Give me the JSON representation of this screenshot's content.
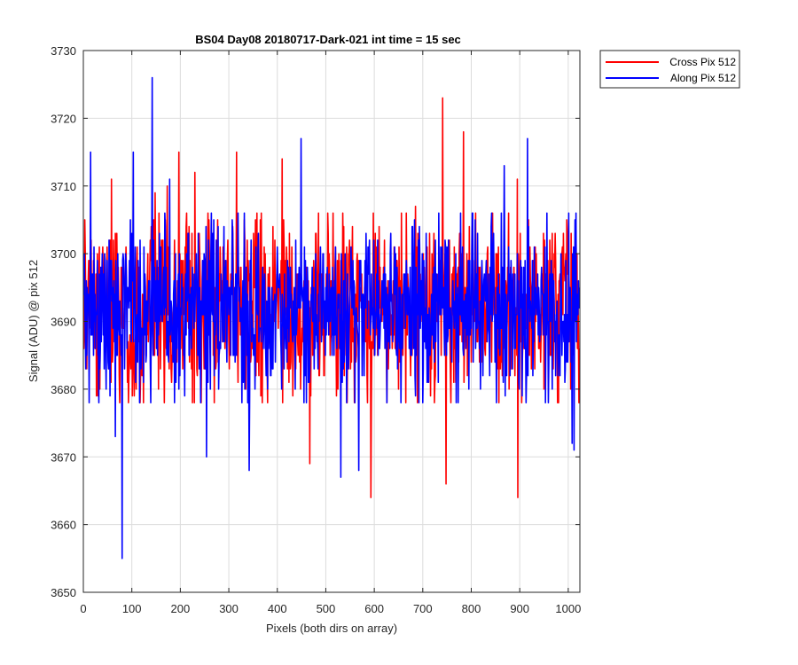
{
  "chart_data": {
    "type": "line",
    "title": "BS04 Day08 20180717-Dark-021 int time = 15 sec",
    "xlabel": "Pixels (both dirs on array)",
    "ylabel": "Signal (ADU) @ pix 512",
    "xlim": [
      0,
      1024
    ],
    "ylim": [
      3650,
      3730
    ],
    "xticks": [
      0,
      100,
      200,
      300,
      400,
      500,
      600,
      700,
      800,
      900,
      1000
    ],
    "yticks": [
      3650,
      3660,
      3670,
      3680,
      3690,
      3700,
      3710,
      3720,
      3730
    ],
    "grid": true,
    "legend_position": "outside-top-right",
    "series": [
      {
        "name": "Cross Pix 512",
        "color": "#ff0000",
        "n_points": 1024,
        "mean": 3692,
        "noise_sigma": 6.5,
        "notable_points": [
          {
            "x": 49,
            "y": 3701
          },
          {
            "x": 58,
            "y": 3711
          },
          {
            "x": 148,
            "y": 3709
          },
          {
            "x": 173,
            "y": 3710
          },
          {
            "x": 197,
            "y": 3715
          },
          {
            "x": 230,
            "y": 3712
          },
          {
            "x": 316,
            "y": 3715
          },
          {
            "x": 410,
            "y": 3714
          },
          {
            "x": 467,
            "y": 3669
          },
          {
            "x": 593,
            "y": 3664
          },
          {
            "x": 685,
            "y": 3707
          },
          {
            "x": 741,
            "y": 3723
          },
          {
            "x": 748,
            "y": 3666
          },
          {
            "x": 784,
            "y": 3718
          },
          {
            "x": 895,
            "y": 3711
          },
          {
            "x": 896,
            "y": 3664
          }
        ]
      },
      {
        "name": "Along Pix 512",
        "color": "#0000ff",
        "n_points": 1024,
        "mean": 3692,
        "noise_sigma": 6.5,
        "notable_points": [
          {
            "x": 15,
            "y": 3715
          },
          {
            "x": 80,
            "y": 3655
          },
          {
            "x": 66,
            "y": 3673
          },
          {
            "x": 103,
            "y": 3715
          },
          {
            "x": 142,
            "y": 3726
          },
          {
            "x": 178,
            "y": 3711
          },
          {
            "x": 254,
            "y": 3670
          },
          {
            "x": 342,
            "y": 3668
          },
          {
            "x": 449,
            "y": 3717
          },
          {
            "x": 531,
            "y": 3667
          },
          {
            "x": 568,
            "y": 3668
          },
          {
            "x": 868,
            "y": 3713
          },
          {
            "x": 916,
            "y": 3717
          },
          {
            "x": 1008,
            "y": 3672
          },
          {
            "x": 1012,
            "y": 3671
          }
        ]
      }
    ]
  }
}
